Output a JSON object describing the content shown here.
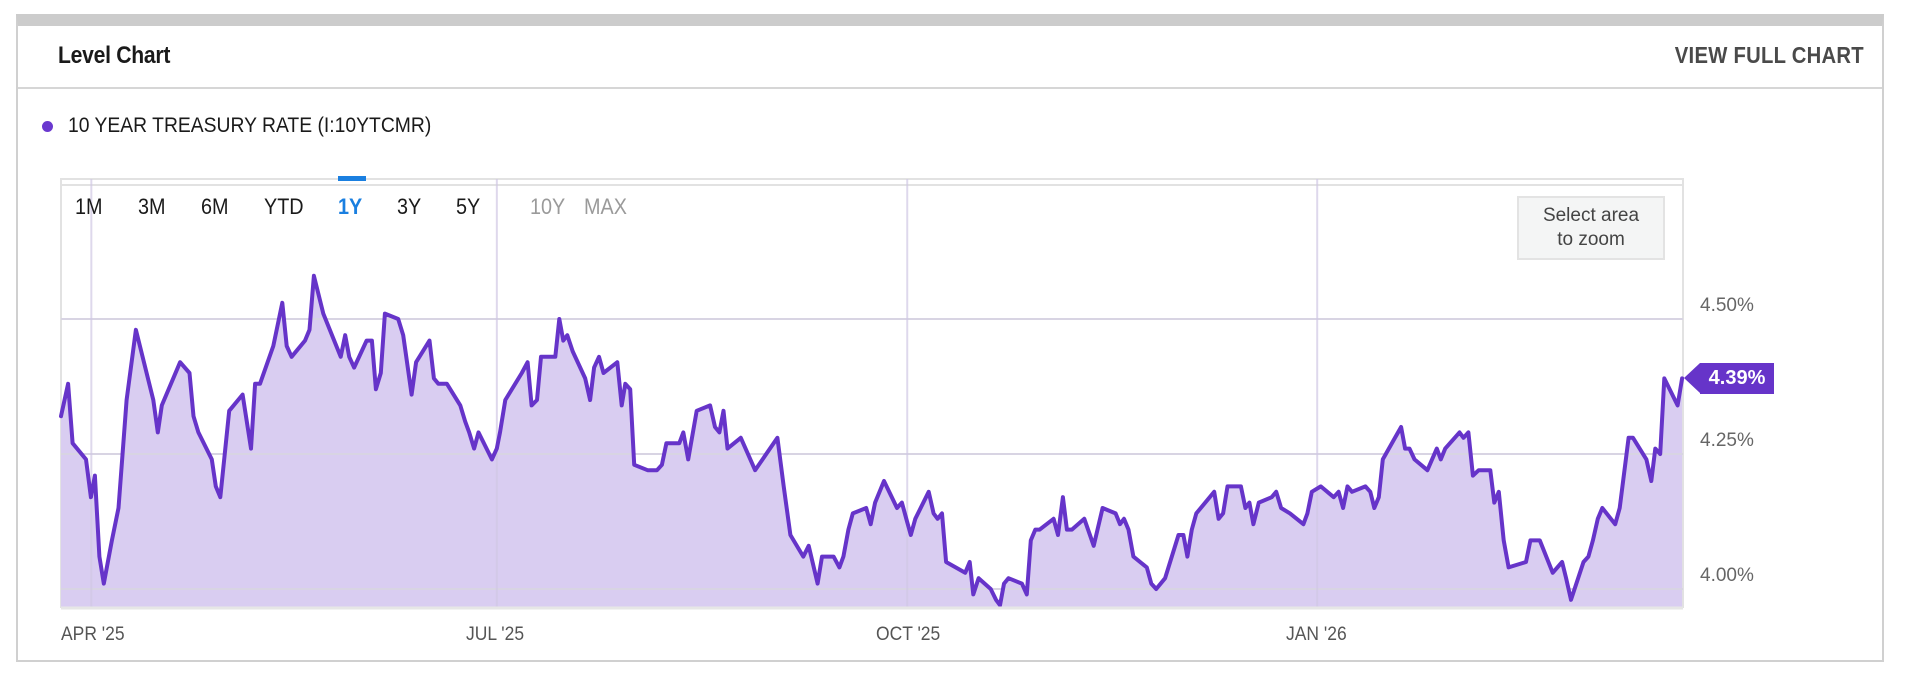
{
  "header": {
    "title": "Level Chart",
    "view_full_chart": "VIEW FULL CHART"
  },
  "legend": {
    "label": "10 YEAR TREASURY RATE (I:10YTCMR)",
    "dot_color": "#6a38cf"
  },
  "range_selector": {
    "buttons": [
      {
        "label": "1M",
        "state": "normal"
      },
      {
        "label": "3M",
        "state": "normal"
      },
      {
        "label": "6M",
        "state": "normal"
      },
      {
        "label": "YTD",
        "state": "normal"
      },
      {
        "label": "1Y",
        "state": "active"
      },
      {
        "label": "3Y",
        "state": "normal"
      },
      {
        "label": "5Y",
        "state": "normal"
      },
      {
        "label": "10Y",
        "state": "disabled"
      },
      {
        "label": "MAX",
        "state": "disabled"
      }
    ],
    "active_color": "#1a7fe0"
  },
  "zoom_hint": {
    "line1": "Select area",
    "line2": "to zoom"
  },
  "current_value_badge": {
    "label": "4.39%",
    "color": "#6634c9"
  },
  "colors": {
    "line": "#6634c9",
    "fill": "#d9cdf1",
    "grid": "#e2e2e2"
  },
  "chart_data": {
    "type": "area",
    "title": "10 YEAR TREASURY RATE (I:10YTCMR)",
    "xlabel": "",
    "ylabel": "",
    "x_unit": "days since start of visible range (~2025-03-25)",
    "x_ticks": [
      {
        "label": "APR '25",
        "day": 6.8
      },
      {
        "label": "JUL '25",
        "day": 97.7
      },
      {
        "label": "OCT '25",
        "day": 189.7
      },
      {
        "label": "JAN '26",
        "day": 281.6
      }
    ],
    "y_ticks": [
      {
        "label": "4.00%",
        "value": 4.0
      },
      {
        "label": "4.25%",
        "value": 4.25
      },
      {
        "label": "4.50%",
        "value": 4.5
      }
    ],
    "xlim": [
      0,
      363.6
    ],
    "ylim": [
      3.969,
      4.609
    ],
    "grid": true,
    "legend_position": "top-left",
    "last_value": 4.39,
    "series": [
      {
        "name": "10 YEAR TREASURY RATE (I:10YTCMR)",
        "points": [
          [
            0,
            4.32
          ],
          [
            1.6,
            4.38
          ],
          [
            2.6,
            4.27
          ],
          [
            5.6,
            4.24
          ],
          [
            6.7,
            4.17
          ],
          [
            7.6,
            4.21
          ],
          [
            8.6,
            4.06
          ],
          [
            9.6,
            4.01
          ],
          [
            11.4,
            4.09
          ],
          [
            12.9,
            4.15
          ],
          [
            14.7,
            4.35
          ],
          [
            16.8,
            4.48
          ],
          [
            20.7,
            4.35
          ],
          [
            21.7,
            4.29
          ],
          [
            22.6,
            4.34
          ],
          [
            26.7,
            4.42
          ],
          [
            28.8,
            4.4
          ],
          [
            29.7,
            4.32
          ],
          [
            30.8,
            4.29
          ],
          [
            33.8,
            4.24
          ],
          [
            34.7,
            4.19
          ],
          [
            35.7,
            4.17
          ],
          [
            37.7,
            4.33
          ],
          [
            40.7,
            4.36
          ],
          [
            42.6,
            4.26
          ],
          [
            43.5,
            4.38
          ],
          [
            44.6,
            4.38
          ],
          [
            47.6,
            4.45
          ],
          [
            49.6,
            4.53
          ],
          [
            50.6,
            4.45
          ],
          [
            51.7,
            4.43
          ],
          [
            54.7,
            4.46
          ],
          [
            55.7,
            4.48
          ],
          [
            56.7,
            4.58
          ],
          [
            58.8,
            4.51
          ],
          [
            62.7,
            4.43
          ],
          [
            63.7,
            4.47
          ],
          [
            64.6,
            4.43
          ],
          [
            65.7,
            4.41
          ],
          [
            68.5,
            4.46
          ],
          [
            69.7,
            4.46
          ],
          [
            70.6,
            4.37
          ],
          [
            71.7,
            4.4
          ],
          [
            72.6,
            4.51
          ],
          [
            75.6,
            4.5
          ],
          [
            76.7,
            4.47
          ],
          [
            78.6,
            4.36
          ],
          [
            79.6,
            4.42
          ],
          [
            82.6,
            4.46
          ],
          [
            83.6,
            4.39
          ],
          [
            84.6,
            4.38
          ],
          [
            86.5,
            4.38
          ],
          [
            89.5,
            4.34
          ],
          [
            90.6,
            4.31
          ],
          [
            91.5,
            4.29
          ],
          [
            92.6,
            4.26
          ],
          [
            93.6,
            4.29
          ],
          [
            96.6,
            4.24
          ],
          [
            97.7,
            4.26
          ],
          [
            98.4,
            4.29
          ],
          [
            99.6,
            4.35
          ],
          [
            103.3,
            4.4
          ],
          [
            104.6,
            4.42
          ],
          [
            105.5,
            4.34
          ],
          [
            106.7,
            4.35
          ],
          [
            107.6,
            4.43
          ],
          [
            110.8,
            4.43
          ],
          [
            111.7,
            4.5
          ],
          [
            112.6,
            4.46
          ],
          [
            113.5,
            4.47
          ],
          [
            114.7,
            4.44
          ],
          [
            117.5,
            4.39
          ],
          [
            118.6,
            4.35
          ],
          [
            119.5,
            4.41
          ],
          [
            120.6,
            4.43
          ],
          [
            121.6,
            4.4
          ],
          [
            124.7,
            4.42
          ],
          [
            125.7,
            4.34
          ],
          [
            126.5,
            4.38
          ],
          [
            127.6,
            4.37
          ],
          [
            128.5,
            4.23
          ],
          [
            131.5,
            4.22
          ],
          [
            133.6,
            4.22
          ],
          [
            134.7,
            4.23
          ],
          [
            135.7,
            4.27
          ],
          [
            138.6,
            4.27
          ],
          [
            139.5,
            4.29
          ],
          [
            140.6,
            4.24
          ],
          [
            142.5,
            4.33
          ],
          [
            145.5,
            4.34
          ],
          [
            146.6,
            4.3
          ],
          [
            147.6,
            4.29
          ],
          [
            148.5,
            4.33
          ],
          [
            149.4,
            4.26
          ],
          [
            152.4,
            4.28
          ],
          [
            155.6,
            4.22
          ],
          [
            160.6,
            4.28
          ],
          [
            162.0,
            4.19
          ],
          [
            163.5,
            4.1
          ],
          [
            166.4,
            4.06
          ],
          [
            167.6,
            4.08
          ],
          [
            169.6,
            4.01
          ],
          [
            170.6,
            4.06
          ],
          [
            173.2,
            4.06
          ],
          [
            174.5,
            4.04
          ],
          [
            175.4,
            4.06
          ],
          [
            176.5,
            4.11
          ],
          [
            177.5,
            4.14
          ],
          [
            180.5,
            4.15
          ],
          [
            181.5,
            4.12
          ],
          [
            182.5,
            4.16
          ],
          [
            184.5,
            4.2
          ],
          [
            187.4,
            4.15
          ],
          [
            188.5,
            4.16
          ],
          [
            189.5,
            4.13
          ],
          [
            190.5,
            4.1
          ],
          [
            191.5,
            4.13
          ],
          [
            194.5,
            4.18
          ],
          [
            195.6,
            4.14
          ],
          [
            196.5,
            4.13
          ],
          [
            197.5,
            4.14
          ],
          [
            198.4,
            4.05
          ],
          [
            202.7,
            4.03
          ],
          [
            203.7,
            4.05
          ],
          [
            204.5,
            3.99
          ],
          [
            205.7,
            4.02
          ],
          [
            208.4,
            4.0
          ],
          [
            209.6,
            3.98
          ],
          [
            210.5,
            3.97
          ],
          [
            211.4,
            4.01
          ],
          [
            212.4,
            4.02
          ],
          [
            215.4,
            4.01
          ],
          [
            216.5,
            3.99
          ],
          [
            217.4,
            4.09
          ],
          [
            218.4,
            4.11
          ],
          [
            219.4,
            4.11
          ],
          [
            222.5,
            4.13
          ],
          [
            223.5,
            4.1
          ],
          [
            224.6,
            4.17
          ],
          [
            225.5,
            4.11
          ],
          [
            226.6,
            4.11
          ],
          [
            229.4,
            4.13
          ],
          [
            231.5,
            4.08
          ],
          [
            233.5,
            4.15
          ],
          [
            236.4,
            4.14
          ],
          [
            237.4,
            4.12
          ],
          [
            238.3,
            4.13
          ],
          [
            239.3,
            4.11
          ],
          [
            240.4,
            4.06
          ],
          [
            243.4,
            4.04
          ],
          [
            244.4,
            4.01
          ],
          [
            245.5,
            4.0
          ],
          [
            247.5,
            4.02
          ],
          [
            250.5,
            4.1
          ],
          [
            251.6,
            4.1
          ],
          [
            252.5,
            4.06
          ],
          [
            253.5,
            4.11
          ],
          [
            254.5,
            4.14
          ],
          [
            258.5,
            4.18
          ],
          [
            259.5,
            4.13
          ],
          [
            260.5,
            4.14
          ],
          [
            261.5,
            4.19
          ],
          [
            264.5,
            4.19
          ],
          [
            265.5,
            4.15
          ],
          [
            266.4,
            4.16
          ],
          [
            267.3,
            4.12
          ],
          [
            268.5,
            4.16
          ],
          [
            271.4,
            4.17
          ],
          [
            272.4,
            4.18
          ],
          [
            273.5,
            4.15
          ],
          [
            275.5,
            4.14
          ],
          [
            278.5,
            4.12
          ],
          [
            279.4,
            4.14
          ],
          [
            280.4,
            4.18
          ],
          [
            282.4,
            4.19
          ],
          [
            285.3,
            4.17
          ],
          [
            286.4,
            4.18
          ],
          [
            287.4,
            4.15
          ],
          [
            288.4,
            4.19
          ],
          [
            289.4,
            4.18
          ],
          [
            292.4,
            4.19
          ],
          [
            293.5,
            4.18
          ],
          [
            294.4,
            4.15
          ],
          [
            295.4,
            4.17
          ],
          [
            296.3,
            4.24
          ],
          [
            300.4,
            4.3
          ],
          [
            301.3,
            4.26
          ],
          [
            302.3,
            4.26
          ],
          [
            303.4,
            4.24
          ],
          [
            306.3,
            4.22
          ],
          [
            308.4,
            4.26
          ],
          [
            309.3,
            4.24
          ],
          [
            310.3,
            4.26
          ],
          [
            313.5,
            4.29
          ],
          [
            314.4,
            4.28
          ],
          [
            315.5,
            4.29
          ],
          [
            316.5,
            4.21
          ],
          [
            317.8,
            4.22
          ],
          [
            320.4,
            4.22
          ],
          [
            321.3,
            4.16
          ],
          [
            322.3,
            4.18
          ],
          [
            323.4,
            4.09
          ],
          [
            324.5,
            4.04
          ],
          [
            328.4,
            4.05
          ],
          [
            329.4,
            4.09
          ],
          [
            330.5,
            4.09
          ],
          [
            331.5,
            4.09
          ],
          [
            334.4,
            4.03
          ],
          [
            336.5,
            4.05
          ],
          [
            337.4,
            4.02
          ],
          [
            338.5,
            3.98
          ],
          [
            341.3,
            4.05
          ],
          [
            342.4,
            4.06
          ],
          [
            343.4,
            4.09
          ],
          [
            344.5,
            4.13
          ],
          [
            345.5,
            4.15
          ],
          [
            348.4,
            4.12
          ],
          [
            349.4,
            4.15
          ],
          [
            351.4,
            4.28
          ],
          [
            352.4,
            4.28
          ],
          [
            355.4,
            4.24
          ],
          [
            356.5,
            4.2
          ],
          [
            357.4,
            4.26
          ],
          [
            358.5,
            4.25
          ],
          [
            359.4,
            4.39
          ],
          [
            362.4,
            4.34
          ],
          [
            363.4,
            4.39
          ]
        ]
      }
    ]
  }
}
